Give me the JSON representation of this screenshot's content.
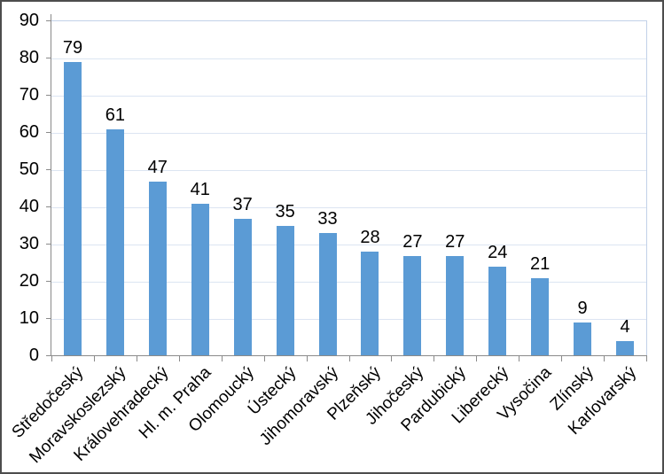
{
  "chart_data": {
    "type": "bar",
    "title": "",
    "xlabel": "",
    "ylabel": "",
    "categories": [
      "Středočeský",
      "Moravskoslezský",
      "Královehradecký",
      "Hl. m. Praha",
      "Olomoucký",
      "Ústecký",
      "Jihomoravský",
      "Plzeňský",
      "Jihočeský",
      "Pardubický",
      "Liberecký",
      "Vysočina",
      "Zlínský",
      "Karlovarský"
    ],
    "values": [
      79,
      61,
      47,
      41,
      37,
      35,
      33,
      28,
      27,
      27,
      24,
      21,
      9,
      4
    ],
    "ylim": [
      0,
      90
    ],
    "yticks": [
      0,
      10,
      20,
      30,
      40,
      50,
      60,
      70,
      80,
      90
    ],
    "grid": true,
    "legend": false,
    "data_labels": true,
    "x_label_rotation_deg": 45,
    "colors": {
      "bar": "#5B9BD5",
      "gridline": "#DCE5F2",
      "plot_border": "#C2D1E8",
      "axis": "#8A8A8A",
      "text": "#000000",
      "chart_border": "#4D4D4D",
      "background": "#FFFFFF"
    }
  }
}
